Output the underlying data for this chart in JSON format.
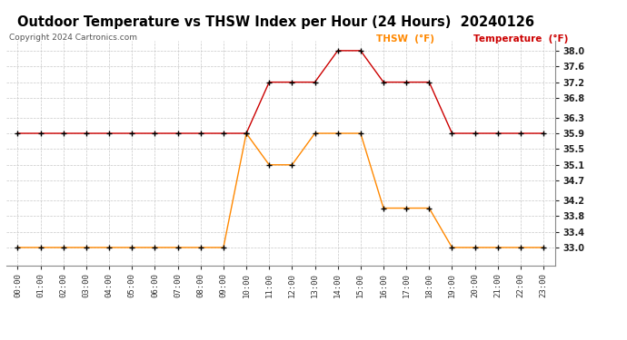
{
  "title": "Outdoor Temperature vs THSW Index per Hour (24 Hours)  20240126",
  "copyright": "Copyright 2024 Cartronics.com",
  "legend_thsw": "THSW  (°F)",
  "legend_temp": "Temperature  (°F)",
  "hours": [
    0,
    1,
    2,
    3,
    4,
    5,
    6,
    7,
    8,
    9,
    10,
    11,
    12,
    13,
    14,
    15,
    16,
    17,
    18,
    19,
    20,
    21,
    22,
    23
  ],
  "temperature": [
    35.9,
    35.9,
    35.9,
    35.9,
    35.9,
    35.9,
    35.9,
    35.9,
    35.9,
    35.9,
    35.9,
    37.2,
    37.2,
    37.2,
    38.0,
    38.0,
    37.2,
    37.2,
    37.2,
    35.9,
    35.9,
    35.9,
    35.9,
    35.9
  ],
  "thsw": [
    33.0,
    33.0,
    33.0,
    33.0,
    33.0,
    33.0,
    33.0,
    33.0,
    33.0,
    33.0,
    35.9,
    35.1,
    35.1,
    35.9,
    35.9,
    35.9,
    34.0,
    34.0,
    34.0,
    33.0,
    33.0,
    33.0,
    33.0,
    33.0
  ],
  "ylim": [
    32.55,
    38.25
  ],
  "yticks": [
    33.0,
    33.4,
    33.8,
    34.2,
    34.7,
    35.1,
    35.5,
    35.9,
    36.3,
    36.8,
    37.2,
    37.6,
    38.0
  ],
  "temp_color": "#cc0000",
  "thsw_color": "#ff8800",
  "marker_color": "#000000",
  "bg_color": "#ffffff",
  "grid_color": "#c8c8c8",
  "title_color": "#000000",
  "copyright_color": "#555555",
  "legend_thsw_color": "#ff8800",
  "legend_temp_color": "#cc0000"
}
